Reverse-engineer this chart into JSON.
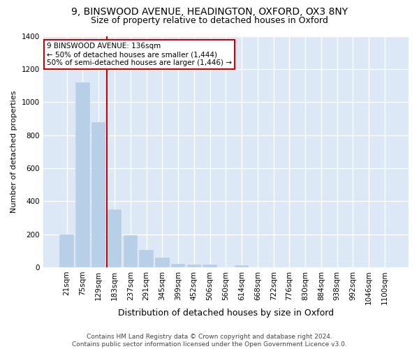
{
  "title_line1": "9, BINSWOOD AVENUE, HEADINGTON, OXFORD, OX3 8NY",
  "title_line2": "Size of property relative to detached houses in Oxford",
  "xlabel": "Distribution of detached houses by size in Oxford",
  "ylabel": "Number of detached properties",
  "categories": [
    "21sqm",
    "75sqm",
    "129sqm",
    "183sqm",
    "237sqm",
    "291sqm",
    "345sqm",
    "399sqm",
    "452sqm",
    "506sqm",
    "560sqm",
    "614sqm",
    "668sqm",
    "722sqm",
    "776sqm",
    "830sqm",
    "884sqm",
    "938sqm",
    "992sqm",
    "1046sqm",
    "1100sqm"
  ],
  "values": [
    197,
    1120,
    880,
    350,
    193,
    105,
    57,
    22,
    18,
    15,
    0,
    14,
    0,
    0,
    0,
    0,
    0,
    0,
    0,
    0,
    0
  ],
  "bar_color": "#b8cfe8",
  "red_line_x": 2.5,
  "annotation_text": "9 BINSWOOD AVENUE: 136sqm\n← 50% of detached houses are smaller (1,444)\n50% of semi-detached houses are larger (1,446) →",
  "annotation_box_facecolor": "#ffffff",
  "annotation_box_edgecolor": "#cc0000",
  "ylim": [
    0,
    1400
  ],
  "yticks": [
    0,
    200,
    400,
    600,
    800,
    1000,
    1200,
    1400
  ],
  "footnote": "Contains HM Land Registry data © Crown copyright and database right 2024.\nContains public sector information licensed under the Open Government Licence v3.0.",
  "fig_facecolor": "#ffffff",
  "ax_facecolor": "#dce8f5",
  "grid_color": "#ffffff",
  "title_fontsize": 10,
  "subtitle_fontsize": 9,
  "ylabel_fontsize": 8,
  "xlabel_fontsize": 9,
  "tick_fontsize": 7.5,
  "annotation_fontsize": 7.5,
  "footnote_fontsize": 6.5
}
